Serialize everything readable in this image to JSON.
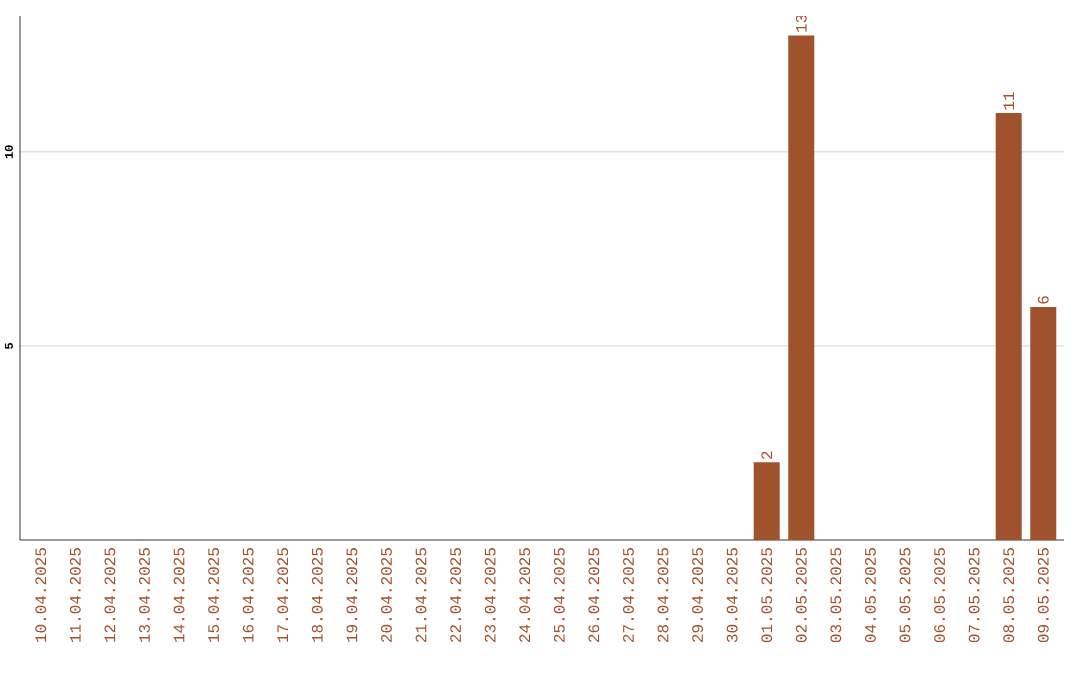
{
  "chart_data": {
    "type": "bar",
    "categories": [
      "10.04.2025",
      "11.04.2025",
      "12.04.2025",
      "13.04.2025",
      "14.04.2025",
      "15.04.2025",
      "16.04.2025",
      "17.04.2025",
      "18.04.2025",
      "19.04.2025",
      "20.04.2025",
      "21.04.2025",
      "22.04.2025",
      "23.04.2025",
      "24.04.2025",
      "25.04.2025",
      "26.04.2025",
      "27.04.2025",
      "28.04.2025",
      "29.04.2025",
      "30.04.2025",
      "01.05.2025",
      "02.05.2025",
      "03.05.2025",
      "04.05.2025",
      "05.05.2025",
      "06.05.2025",
      "07.05.2025",
      "08.05.2025",
      "09.05.2025"
    ],
    "values": [
      0,
      0,
      0,
      0,
      0,
      0,
      0,
      0,
      0,
      0,
      0,
      0,
      0,
      0,
      0,
      0,
      0,
      0,
      0,
      0,
      0,
      2,
      13,
      0,
      0,
      0,
      0,
      0,
      11,
      6
    ],
    "value_labels": [
      null,
      null,
      null,
      null,
      null,
      null,
      null,
      null,
      null,
      null,
      null,
      null,
      null,
      null,
      null,
      null,
      null,
      null,
      null,
      null,
      null,
      "2",
      "13",
      null,
      null,
      null,
      null,
      null,
      "11",
      "6"
    ],
    "color": "#a0522d",
    "ylim": [
      0,
      13.5
    ],
    "yticks": [
      5,
      10
    ],
    "grid": "y"
  }
}
